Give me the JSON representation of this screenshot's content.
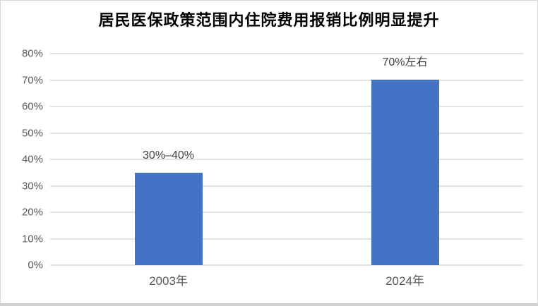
{
  "title": "居民医保政策范围内住院费用报销比例明显提升",
  "colors": {
    "bar": "#4472C4",
    "gridline": "#e2e2e2",
    "axis_text": "#595959",
    "data_label_text": "#404040",
    "title_text": "#000000",
    "background": "#ffffff"
  },
  "chart_data": {
    "type": "bar",
    "title": "居民医保政策范围内住院费用报销比例明显提升",
    "categories": [
      "2003年",
      "2024年"
    ],
    "values": [
      35,
      70
    ],
    "data_labels": [
      "30%–40%",
      "70%左右"
    ],
    "xlabel": "",
    "ylabel": "",
    "ylim": [
      0,
      80
    ],
    "ytick_step": 10,
    "ytick_labels": [
      "0%",
      "10%",
      "20%",
      "30%",
      "40%",
      "50%",
      "60%",
      "70%",
      "80%"
    ],
    "grid": true,
    "legend": false,
    "bar_color": "#4472C4"
  }
}
